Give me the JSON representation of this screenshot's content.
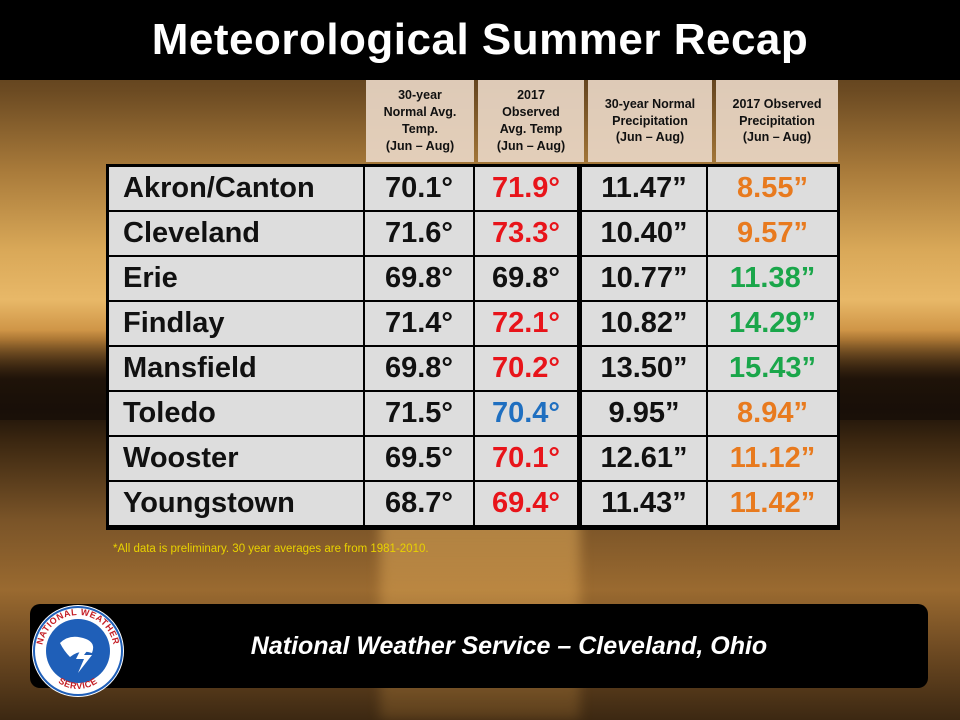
{
  "title": "Meteorological Summer Recap",
  "headers": {
    "normal_temp": "30-year\nNormal Avg.\nTemp.\n(Jun – Aug)",
    "observed_temp": "2017\nObserved\nAvg. Temp\n(Jun – Aug)",
    "normal_precip": "30-year Normal\nPrecipitation\n(Jun – Aug)",
    "observed_precip": "2017 Observed\nPrecipitation\n(Jun – Aug)"
  },
  "colors": {
    "above": "#e8141a",
    "below": "#1f6fc0",
    "normal": "#111111",
    "precip_low": "#e87a1e",
    "precip_high": "#1aa64a"
  },
  "rows": [
    {
      "city": "Akron/Canton",
      "normal_temp": "70.1°",
      "observed_temp": "71.9°",
      "temp_color": "#e8141a",
      "normal_precip": "11.47”",
      "observed_precip": "8.55”",
      "precip_color": "#e87a1e"
    },
    {
      "city": "Cleveland",
      "normal_temp": "71.6°",
      "observed_temp": "73.3°",
      "temp_color": "#e8141a",
      "normal_precip": "10.40”",
      "observed_precip": "9.57”",
      "precip_color": "#e87a1e"
    },
    {
      "city": "Erie",
      "normal_temp": "69.8°",
      "observed_temp": "69.8°",
      "temp_color": "#111111",
      "normal_precip": "10.77”",
      "observed_precip": "11.38”",
      "precip_color": "#1aa64a"
    },
    {
      "city": "Findlay",
      "normal_temp": "71.4°",
      "observed_temp": "72.1°",
      "temp_color": "#e8141a",
      "normal_precip": "10.82”",
      "observed_precip": "14.29”",
      "precip_color": "#1aa64a"
    },
    {
      "city": "Mansfield",
      "normal_temp": "69.8°",
      "observed_temp": "70.2°",
      "temp_color": "#e8141a",
      "normal_precip": "13.50”",
      "observed_precip": "15.43”",
      "precip_color": "#1aa64a"
    },
    {
      "city": "Toledo",
      "normal_temp": "71.5°",
      "observed_temp": "70.4°",
      "temp_color": "#1f6fc0",
      "normal_precip": "9.95”",
      "observed_precip": "8.94”",
      "precip_color": "#e87a1e"
    },
    {
      "city": "Wooster",
      "normal_temp": "69.5°",
      "observed_temp": "70.1°",
      "temp_color": "#e8141a",
      "normal_precip": "12.61”",
      "observed_precip": "11.12”",
      "precip_color": "#e87a1e"
    },
    {
      "city": "Youngstown",
      "normal_temp": "68.7°",
      "observed_temp": "69.4°",
      "temp_color": "#e8141a",
      "normal_precip": "11.43”",
      "observed_precip": "11.42”",
      "precip_color": "#e87a1e"
    }
  ],
  "note": "*All data is preliminary. 30 year averages are from 1981-2010.",
  "footer": "National Weather Service – Cleveland, Ohio",
  "logo": {
    "icon": "nws-logo-icon",
    "text_top": "NATIONAL WEATHER SERVICE",
    "accent": "#1f5fb8"
  }
}
